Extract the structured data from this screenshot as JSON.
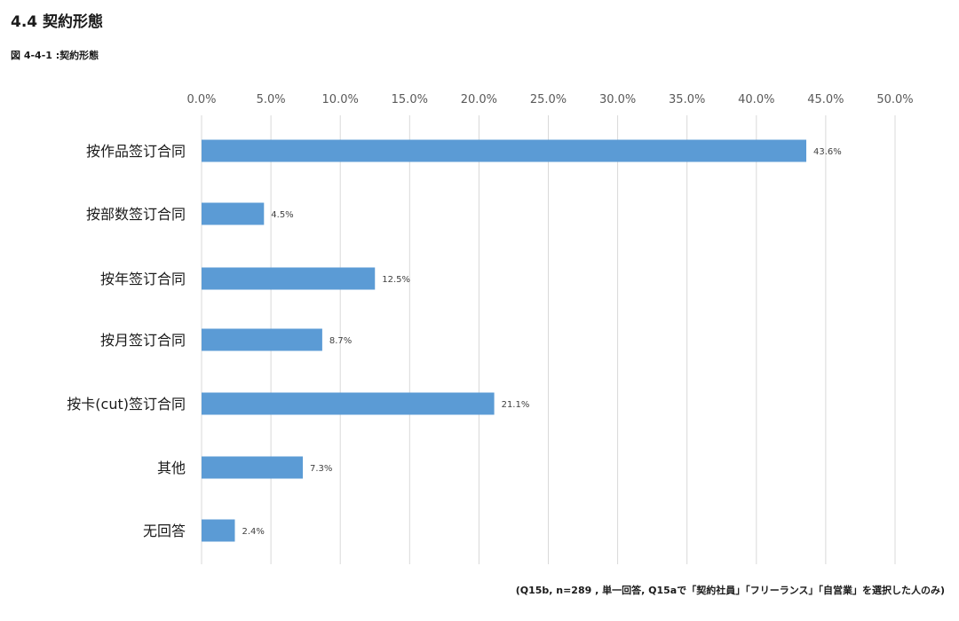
{
  "section_title": "4.4 契約形態",
  "figure_title": "図 4-4-1 :契約形態",
  "note": "(Q15b, n=289 , 単一回答, Q15aで「契約社員」「フリーランス」「自営業」を選択した人のみ)",
  "colors": {
    "bar": "#5b9bd5",
    "grid": "#d9d9d9"
  },
  "chart_data": {
    "type": "bar",
    "orientation": "horizontal",
    "title": "",
    "xlabel": "",
    "ylabel": "",
    "xlim": [
      0,
      50
    ],
    "ticks": [
      "0.0%",
      "5.0%",
      "10.0%",
      "15.0%",
      "20.0%",
      "25.0%",
      "30.0%",
      "35.0%",
      "40.0%",
      "45.0%",
      "50.0%"
    ],
    "tick_axis_position": "top",
    "grid": true,
    "legend": "none",
    "categories": [
      "按作品签订合同",
      "按部数签订合同",
      "按年签订合同",
      "按月签订合同",
      "按卡(cut)签订合同",
      "其他",
      "无回答"
    ],
    "values": [
      43.6,
      4.5,
      12.5,
      8.7,
      21.1,
      7.3,
      2.4
    ],
    "data_labels": [
      "43.6%",
      "4.5%",
      "12.5%",
      "8.7%",
      "21.1%",
      "7.3%",
      "2.4%"
    ]
  }
}
